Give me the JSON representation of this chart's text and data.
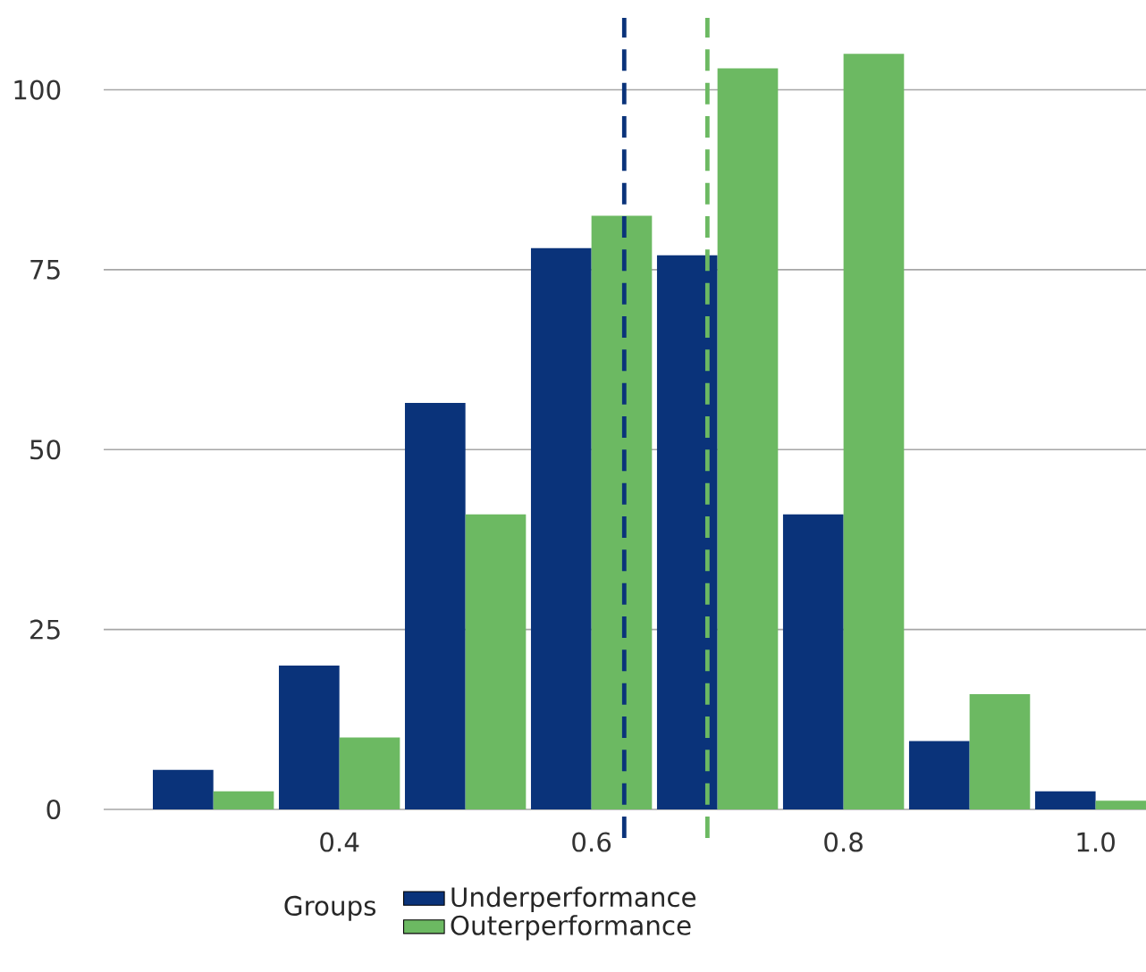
{
  "chart_data": {
    "type": "bar",
    "legend_title": "Groups",
    "x": [
      0.3,
      0.4,
      0.5,
      0.6,
      0.7,
      0.8,
      0.9,
      1.0
    ],
    "series": [
      {
        "name": "Underperformance",
        "color": "#0a337a",
        "values": [
          5.5,
          20,
          56.5,
          78,
          77,
          41,
          9.5,
          2.5
        ]
      },
      {
        "name": "Outerperformance",
        "color": "#6cb962",
        "values": [
          2.5,
          10,
          41,
          82.5,
          103,
          105,
          16,
          1.2
        ]
      }
    ],
    "xlim": [
      0.213,
      1.04
    ],
    "ylim": [
      0,
      110
    ],
    "xticks": [
      0.4,
      0.6,
      0.8,
      {
        "value": 1.0,
        "label": "1.0"
      }
    ],
    "yticks": [
      0,
      25,
      50,
      75,
      100
    ],
    "grid": "y",
    "legend": "bottom",
    "ref_lines": [
      {
        "axis": "x",
        "value": 0.626,
        "color": "#0a337a",
        "line_style": "dashed"
      },
      {
        "axis": "x",
        "value": 0.692,
        "color": "#6cb962",
        "line_style": "dashed"
      }
    ]
  }
}
